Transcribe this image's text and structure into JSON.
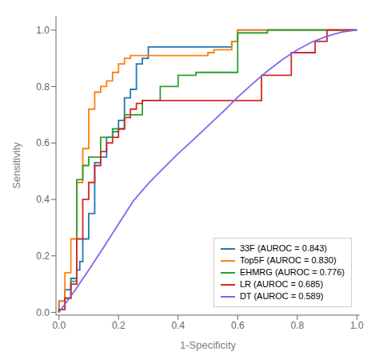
{
  "chart_data": {
    "type": "line",
    "xlabel": "1-Specificity",
    "ylabel": "Sensitivity",
    "xlim": [
      -0.01,
      1.01
    ],
    "ylim": [
      -0.01,
      1.05
    ],
    "xticks": [
      {
        "value": 0.0,
        "label": "0.0"
      },
      0.2,
      0.4,
      0.6,
      0.8,
      {
        "value": 1.0,
        "label": "1.0"
      }
    ],
    "yticks": [
      {
        "value": 0.0,
        "label": "0.0"
      },
      0.2,
      0.4,
      0.6,
      0.8,
      {
        "value": 1.0,
        "label": "1.0"
      }
    ],
    "grid": false,
    "legend": "lower right",
    "series": [
      {
        "name": "33F (AUROC = 0.843)",
        "color": "#1f77b4",
        "x": [
          0.0,
          0.0,
          0.02,
          0.02,
          0.04,
          0.04,
          0.06,
          0.06,
          0.07,
          0.07,
          0.08,
          0.08,
          0.1,
          0.1,
          0.12,
          0.12,
          0.14,
          0.14,
          0.16,
          0.16,
          0.18,
          0.18,
          0.2,
          0.2,
          0.22,
          0.22,
          0.24,
          0.24,
          0.26,
          0.26,
          0.28,
          0.28,
          0.3,
          0.3,
          0.58,
          0.58,
          0.6,
          0.6,
          1.0
        ],
        "values": [
          0.0,
          0.04,
          0.04,
          0.08,
          0.08,
          0.12,
          0.12,
          0.15,
          0.15,
          0.18,
          0.18,
          0.26,
          0.26,
          0.35,
          0.35,
          0.53,
          0.53,
          0.55,
          0.55,
          0.62,
          0.62,
          0.64,
          0.64,
          0.68,
          0.68,
          0.76,
          0.76,
          0.79,
          0.79,
          0.88,
          0.88,
          0.9,
          0.9,
          0.94,
          0.94,
          0.96,
          0.96,
          1.0,
          1.0
        ]
      },
      {
        "name": "Top5F (AUROC = 0.830)",
        "color": "#ff7f0e",
        "x": [
          0.0,
          0.0,
          0.02,
          0.02,
          0.04,
          0.04,
          0.06,
          0.06,
          0.08,
          0.08,
          0.1,
          0.1,
          0.12,
          0.12,
          0.14,
          0.14,
          0.16,
          0.16,
          0.18,
          0.18,
          0.2,
          0.2,
          0.22,
          0.22,
          0.24,
          0.24,
          0.26,
          0.26,
          0.5,
          0.5,
          0.52,
          0.52,
          0.58,
          0.58,
          0.6,
          0.6,
          1.0
        ],
        "values": [
          0.0,
          0.04,
          0.04,
          0.14,
          0.14,
          0.26,
          0.26,
          0.46,
          0.46,
          0.58,
          0.58,
          0.72,
          0.72,
          0.78,
          0.78,
          0.8,
          0.8,
          0.82,
          0.82,
          0.85,
          0.85,
          0.88,
          0.88,
          0.9,
          0.9,
          0.91,
          0.91,
          0.91,
          0.91,
          0.92,
          0.92,
          0.93,
          0.93,
          0.96,
          0.96,
          1.0,
          1.0
        ]
      },
      {
        "name": "EHMRG (AUROC = 0.776)",
        "color": "#2ca02c",
        "x": [
          0.0,
          0.0,
          0.02,
          0.02,
          0.04,
          0.04,
          0.06,
          0.06,
          0.08,
          0.08,
          0.1,
          0.1,
          0.14,
          0.14,
          0.18,
          0.18,
          0.22,
          0.22,
          0.28,
          0.28,
          0.34,
          0.34,
          0.4,
          0.4,
          0.46,
          0.46,
          0.6,
          0.6,
          0.7,
          0.7,
          0.72,
          0.72,
          1.0
        ],
        "values": [
          0.0,
          0.01,
          0.01,
          0.05,
          0.05,
          0.11,
          0.11,
          0.47,
          0.47,
          0.52,
          0.52,
          0.55,
          0.55,
          0.62,
          0.62,
          0.65,
          0.65,
          0.7,
          0.7,
          0.75,
          0.75,
          0.8,
          0.8,
          0.84,
          0.84,
          0.85,
          0.85,
          0.99,
          0.99,
          1.0,
          1.0,
          1.0,
          1.0
        ]
      },
      {
        "name": "LR (AUROC = 0.685)",
        "color": "#d62728",
        "x": [
          0.0,
          0.0,
          0.02,
          0.02,
          0.04,
          0.04,
          0.06,
          0.06,
          0.08,
          0.08,
          0.1,
          0.1,
          0.12,
          0.12,
          0.14,
          0.14,
          0.16,
          0.16,
          0.18,
          0.18,
          0.2,
          0.2,
          0.22,
          0.22,
          0.24,
          0.24,
          0.26,
          0.26,
          0.28,
          0.28,
          0.68,
          0.68,
          0.78,
          0.78,
          0.86,
          0.86,
          0.9,
          0.9,
          1.0
        ],
        "values": [
          0.0,
          0.01,
          0.01,
          0.05,
          0.05,
          0.1,
          0.1,
          0.26,
          0.26,
          0.4,
          0.4,
          0.46,
          0.46,
          0.52,
          0.52,
          0.57,
          0.57,
          0.6,
          0.6,
          0.62,
          0.62,
          0.65,
          0.65,
          0.69,
          0.69,
          0.72,
          0.72,
          0.74,
          0.74,
          0.75,
          0.75,
          0.84,
          0.84,
          0.92,
          0.92,
          0.96,
          0.96,
          1.0,
          1.0
        ]
      },
      {
        "name": "DT (AUROC = 0.589)",
        "color": "#7b68ee",
        "x": [
          0.0,
          0.05,
          0.1,
          0.15,
          0.2,
          0.25,
          0.3,
          0.35,
          0.4,
          0.45,
          0.5,
          0.55,
          0.6,
          0.65,
          0.7,
          0.75,
          0.8,
          0.85,
          0.9,
          0.95,
          1.0
        ],
        "values": [
          0.0,
          0.072,
          0.15,
          0.23,
          0.313,
          0.395,
          0.456,
          0.51,
          0.562,
          0.61,
          0.66,
          0.71,
          0.762,
          0.81,
          0.855,
          0.895,
          0.93,
          0.958,
          0.978,
          0.993,
          1.0
        ]
      }
    ]
  }
}
